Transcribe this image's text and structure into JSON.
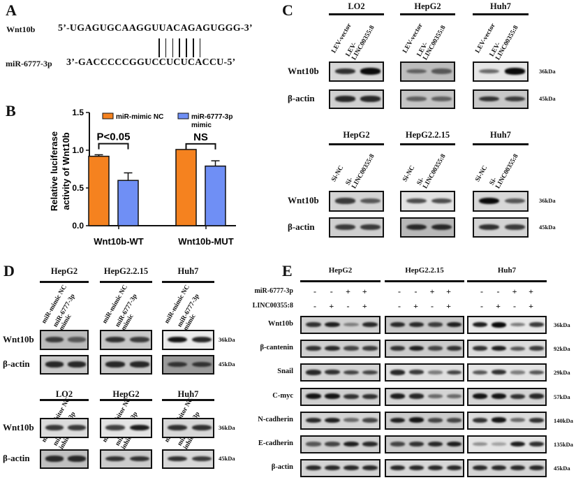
{
  "panelA": {
    "label": "A",
    "target_name": "Wnt10b",
    "target_seq": "5’-UGAGUGCAAGGUUACAGAGUGGG-3’",
    "mirna_name": "miR-6777-3p",
    "mirna_seq": "3’-GACCCCCGGUCCUCUCACCU-5’",
    "pair_count": 7
  },
  "panelB": {
    "label": "B",
    "significance": [
      "P<0.05",
      "NS"
    ]
  },
  "chart_data": {
    "type": "bar",
    "categories": [
      "Wnt10b-WT",
      "Wnt10b-MUT"
    ],
    "series": [
      {
        "name": "miR-mimic NC",
        "values": [
          0.92,
          1.01
        ],
        "errors": [
          0.02,
          0.0
        ],
        "color": "#f5821f"
      },
      {
        "name": "miR-6777-3p mimic",
        "values": [
          0.6,
          0.79
        ],
        "errors": [
          0.1,
          0.07
        ],
        "color": "#6f8ff5"
      }
    ],
    "ylabel": "Relative luciferase activity of Wnt10b",
    "xlabel": "",
    "ylim": [
      0,
      1.5
    ],
    "yticks": [
      "0.0",
      "0.5",
      "1.0",
      "1.5"
    ],
    "legend": "top",
    "grid": false
  },
  "panelC": {
    "label": "C",
    "sections": [
      {
        "groups": [
          {
            "title": "LO2",
            "lanes": [
              "LEV-vector",
              "LEV-\nLINC00355:8"
            ]
          },
          {
            "title": "HepG2",
            "lanes": [
              "LEV-vector",
              "LEV-\nLINC00355:8"
            ]
          },
          {
            "title": "Huh7",
            "lanes": [
              "LEV-vector",
              "LEV-\nLINC00355:8"
            ]
          }
        ],
        "rows": [
          {
            "name": "Wnt10b",
            "kda": "36kDa",
            "bg": [
              "#d6d6d6",
              "#bdbdbd",
              "#e6e6e6"
            ],
            "bands": [
              [
                0.8,
                1.0
              ],
              [
                0.55,
                0.6
              ],
              [
                0.5,
                1.0
              ]
            ]
          },
          {
            "name": "β-actin",
            "kda": "45kDa",
            "bg": [
              "#d0d0d0",
              "#c4c4c4",
              "#c8c8c8"
            ],
            "bands": [
              [
                0.85,
                0.85
              ],
              [
                0.55,
                0.55
              ],
              [
                0.8,
                0.75
              ]
            ]
          }
        ]
      },
      {
        "groups": [
          {
            "title": "HepG2",
            "lanes": [
              "Si-NC",
              "Si-\nLINC00355:8"
            ]
          },
          {
            "title": "HepG2.2.15",
            "lanes": [
              "Si-NC",
              "Si-\nLINC00355:8"
            ]
          },
          {
            "title": "Huh7",
            "lanes": [
              "Si-NC",
              "Si-\nLINC00355:8"
            ]
          }
        ],
        "rows": [
          {
            "name": "Wnt10b",
            "kda": "36kDa",
            "bg": [
              "#d4d4d4",
              "#e2e2e2",
              "#d8d8d8"
            ],
            "bands": [
              [
                0.75,
                0.6
              ],
              [
                0.65,
                0.65
              ],
              [
                1.0,
                0.6
              ]
            ]
          },
          {
            "name": "β-actin",
            "kda": "45kDa",
            "bg": [
              "#cfcfcf",
              "#b8b8b8",
              "#d4d4d4"
            ],
            "bands": [
              [
                0.75,
                0.75
              ],
              [
                0.85,
                0.85
              ],
              [
                0.8,
                0.75
              ]
            ]
          }
        ]
      }
    ]
  },
  "panelD": {
    "label": "D",
    "sections": [
      {
        "groups": [
          {
            "title": "HepG2",
            "lanes": [
              "miR-mimic NC",
              "miR-6777-3p\nmimic"
            ]
          },
          {
            "title": "HepG2.2.15",
            "lanes": [
              "miR-mimic NC",
              "miR-6777-3p\nmimic"
            ]
          },
          {
            "title": "Huh7",
            "lanes": [
              "miR-mimic NC",
              "miR-6777-3p\nmimic"
            ]
          }
        ],
        "rows": [
          {
            "name": "Wnt10b",
            "kda": "36kDa",
            "bg": [
              "#bcbcbc",
              "#c8c8c8",
              "#ececec"
            ],
            "bands": [
              [
                0.75,
                0.6
              ],
              [
                0.8,
                0.75
              ],
              [
                0.95,
                0.85
              ]
            ]
          },
          {
            "name": "β-actin",
            "kda": "45kDa",
            "bg": [
              "#c8c8c8",
              "#c8c8c8",
              "#9a9a9a"
            ],
            "bands": [
              [
                0.85,
                0.85
              ],
              [
                0.85,
                0.85
              ],
              [
                0.8,
                0.8
              ]
            ]
          }
        ]
      },
      {
        "groups": [
          {
            "title": "LO2",
            "lanes": [
              "miR-inhibitor NC",
              "miR06777-3p\ninhibitor"
            ]
          },
          {
            "title": "HepG2",
            "lanes": [
              "miR-inhibitor NC",
              "miR06777-3p\ninhibitor"
            ]
          },
          {
            "title": "Huh7",
            "lanes": [
              "miR-inhibitor NC",
              "miR06777-3p\ninhibitor"
            ]
          }
        ],
        "rows": [
          {
            "name": "Wnt10b",
            "kda": "36kDa",
            "bg": [
              "#dcdcdc",
              "#e4e4e4",
              "#d8d8d8"
            ],
            "bands": [
              [
                0.75,
                0.75
              ],
              [
                0.7,
                0.9
              ],
              [
                0.8,
                0.8
              ]
            ]
          },
          {
            "name": "β-actin",
            "kda": "45kDa",
            "bg": [
              "#c0c0c0",
              "#cccccc",
              "#d8d8d8"
            ],
            "bands": [
              [
                0.85,
                0.85
              ],
              [
                0.8,
                0.8
              ],
              [
                0.8,
                0.75
              ]
            ]
          }
        ]
      }
    ]
  },
  "panelE": {
    "label": "E",
    "groups": [
      "HepG2",
      "HepG2.2.15",
      "Huh7"
    ],
    "conditions": [
      {
        "name": "miR-6777-3p",
        "signs": [
          "-",
          "-",
          "+",
          "+"
        ]
      },
      {
        "name": "LINC00355:8",
        "signs": [
          "-",
          "+",
          "-",
          "+"
        ]
      }
    ],
    "rows": [
      {
        "name": "Wnt10b",
        "kda": "36kDa",
        "bg": [
          "#d0d0d0",
          "#c8c8c8",
          "#e8e8e8"
        ],
        "bands": [
          [
            0.8,
            0.9,
            0.4,
            0.85
          ],
          [
            0.85,
            0.85,
            0.75,
            0.9
          ],
          [
            0.9,
            1.0,
            0.4,
            0.75
          ]
        ]
      },
      {
        "name": "β-cantenin",
        "kda": "92kDa",
        "bg": [
          "#d0d0d0",
          "#cccccc",
          "#dcdcdc"
        ],
        "bands": [
          [
            0.8,
            0.85,
            0.7,
            0.75
          ],
          [
            0.8,
            0.9,
            0.7,
            0.8
          ],
          [
            0.8,
            0.9,
            0.6,
            0.75
          ]
        ]
      },
      {
        "name": "Snail",
        "kda": "29kDa",
        "bg": [
          "#d4d4d4",
          "#e0e0e0",
          "#e4e4e4"
        ],
        "bands": [
          [
            0.85,
            0.8,
            0.7,
            0.7
          ],
          [
            0.85,
            0.75,
            0.4,
            0.7
          ],
          [
            0.6,
            0.8,
            0.4,
            0.6
          ]
        ]
      },
      {
        "name": "C-myc",
        "kda": "57kDa",
        "bg": [
          "#d0d0d0",
          "#d4d4d4",
          "#d4d4d4"
        ],
        "bands": [
          [
            0.95,
            0.95,
            0.8,
            0.8
          ],
          [
            0.9,
            0.85,
            0.5,
            0.5
          ],
          [
            0.95,
            0.95,
            0.8,
            0.85
          ]
        ]
      },
      {
        "name": "N-cadherin",
        "kda": "140kDa",
        "bg": [
          "#d4d4d4",
          "#cccccc",
          "#dcdcdc"
        ],
        "bands": [
          [
            0.85,
            0.9,
            0.5,
            0.7
          ],
          [
            0.9,
            0.95,
            0.7,
            0.7
          ],
          [
            0.8,
            0.95,
            0.5,
            0.8
          ]
        ]
      },
      {
        "name": "E-cadherin",
        "kda": "135kDa",
        "bg": [
          "#d0d0d0",
          "#cccccc",
          "#e4e4e4"
        ],
        "bands": [
          [
            0.6,
            0.7,
            0.9,
            0.85
          ],
          [
            0.7,
            0.8,
            0.85,
            0.9
          ],
          [
            0.3,
            0.2,
            0.9,
            0.8
          ]
        ]
      },
      {
        "name": "β-actin",
        "kda": "45kDa",
        "bg": [
          "#d4d4d4",
          "#d8d8d8",
          "#d4d4d4"
        ],
        "bands": [
          [
            0.85,
            0.85,
            0.85,
            0.85
          ],
          [
            0.85,
            0.85,
            0.85,
            0.85
          ],
          [
            0.85,
            0.85,
            0.85,
            0.85
          ]
        ]
      }
    ]
  }
}
